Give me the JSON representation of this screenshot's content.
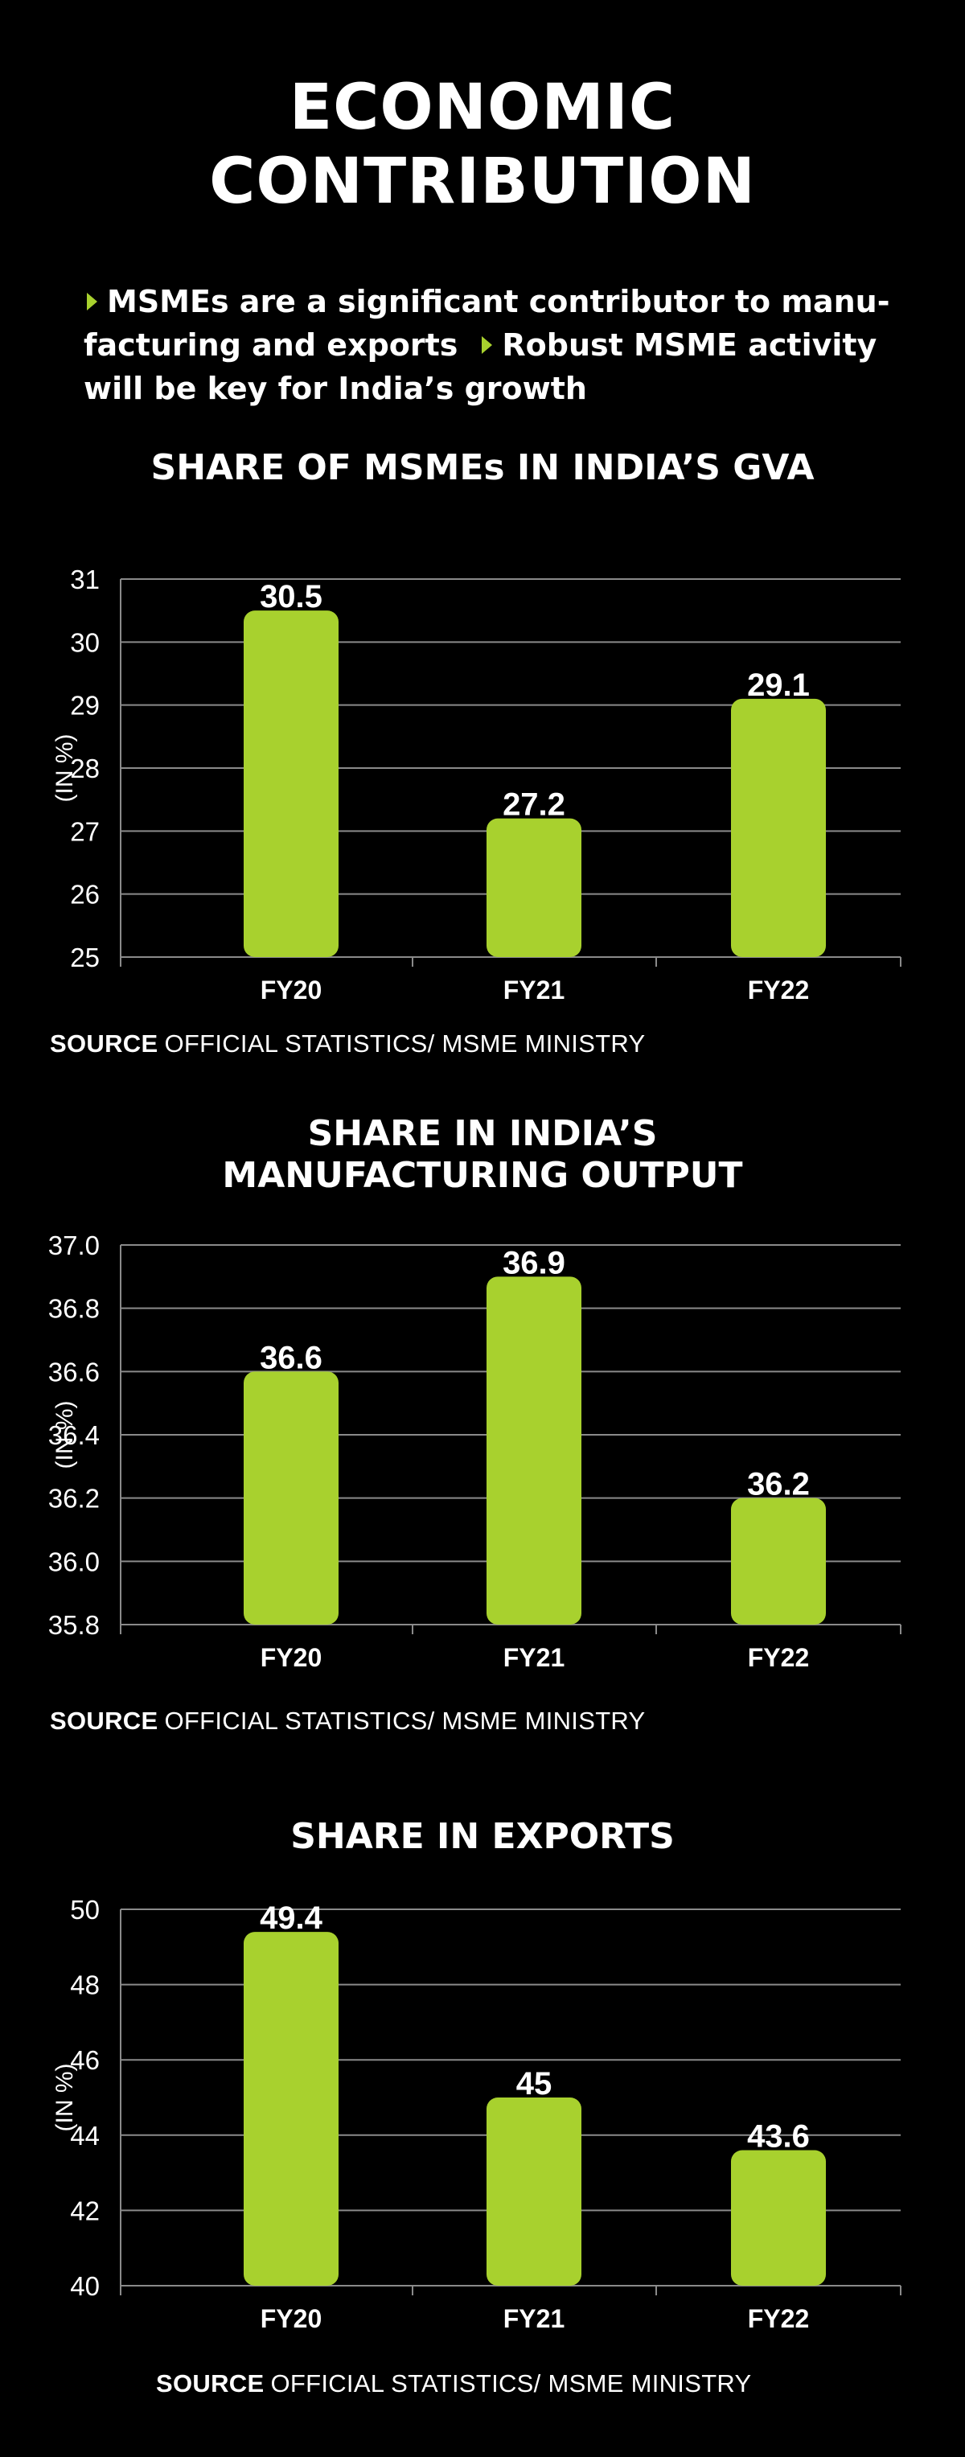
{
  "title": {
    "line1": "ECONOMIC",
    "line2": "CONTRIBUTION"
  },
  "intro": {
    "bullet1": "MSMEs are a significant contributor to manu- facturing and exports",
    "bullet2": "Robust MSME activity will be key for India’s growth"
  },
  "colors": {
    "bar": "#a8d12e",
    "background": "#000000",
    "grid": "#8a8a8a",
    "text": "#ffffff"
  },
  "chart_data": [
    {
      "type": "bar",
      "title": "SHARE OF MSMEs IN INDIA’S GVA",
      "title_lines": [
        "SHARE OF MSMEs IN INDIA’S GVA"
      ],
      "ylabel": "(IN %)",
      "xlabel": "",
      "categories": [
        "FY20",
        "FY21",
        "FY22"
      ],
      "values": [
        30.5,
        27.2,
        29.1
      ],
      "value_labels": [
        "30.5",
        "27.2",
        "29.1"
      ],
      "ylim": [
        25,
        31
      ],
      "yticks": [
        "25",
        "26",
        "27",
        "28",
        "29",
        "30",
        "31"
      ],
      "grid": true,
      "source_label": "SOURCE",
      "source_text": "OFFICIAL STATISTICS/ MSME MINISTRY"
    },
    {
      "type": "bar",
      "title": "SHARE IN INDIA’S MANUFACTURING OUTPUT",
      "title_lines": [
        "SHARE IN INDIA’S",
        "MANUFACTURING OUTPUT"
      ],
      "ylabel": "(IN %)",
      "xlabel": "",
      "categories": [
        "FY20",
        "FY21",
        "FY22"
      ],
      "values": [
        36.6,
        36.9,
        36.2
      ],
      "value_labels": [
        "36.6",
        "36.9",
        "36.2"
      ],
      "ylim": [
        35.8,
        37.0
      ],
      "yticks": [
        "35.8",
        "36.0",
        "36.2",
        "36.4",
        "36.6",
        "36.8",
        "37.0"
      ],
      "grid": true,
      "source_label": "SOURCE",
      "source_text": "OFFICIAL STATISTICS/ MSME MINISTRY"
    },
    {
      "type": "bar",
      "title": "SHARE IN EXPORTS",
      "title_lines": [
        "SHARE IN EXPORTS"
      ],
      "ylabel": "(IN %)",
      "xlabel": "",
      "categories": [
        "FY20",
        "FY21",
        "FY22"
      ],
      "values": [
        49.4,
        45,
        43.6
      ],
      "value_labels": [
        "49.4",
        "45",
        "43.6"
      ],
      "ylim": [
        40,
        50
      ],
      "yticks": [
        "40",
        "42",
        "44",
        "46",
        "48",
        "50"
      ],
      "grid": true,
      "source_label": "SOURCE",
      "source_text": "OFFICIAL STATISTICS/ MSME MINISTRY"
    }
  ]
}
